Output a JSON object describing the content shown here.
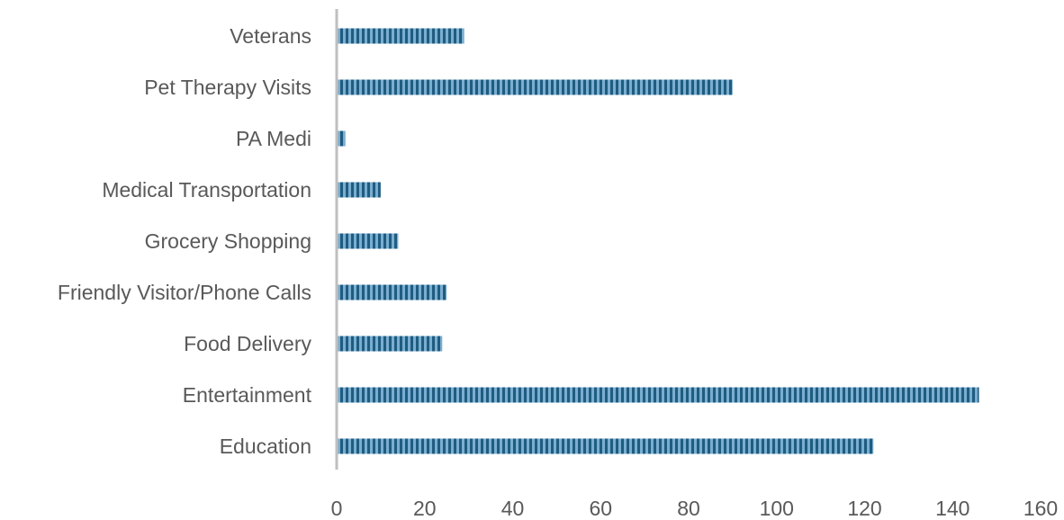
{
  "chart_data": {
    "type": "bar",
    "orientation": "horizontal",
    "title": "",
    "xlabel": "",
    "ylabel": "",
    "categories": [
      "Education",
      "Entertainment",
      "Food Delivery",
      "Friendly Visitor/Phone Calls",
      "Grocery Shopping",
      "Medical Transportation",
      "PA Medi",
      "Pet Therapy Visits",
      "Veterans"
    ],
    "values": [
      122,
      146,
      24,
      25,
      14,
      10,
      2,
      90,
      29
    ],
    "xlim": [
      0,
      160
    ],
    "xticks": [
      0,
      20,
      40,
      60,
      80,
      100,
      120,
      140,
      160
    ],
    "grid": false,
    "legend": "none",
    "colors": {
      "bar_dark": "#1f5c80",
      "bar_light": "#7aaed0",
      "axis": "#bfbfbf",
      "text": "#595959"
    },
    "bar_pattern": "vertical-stripes"
  }
}
